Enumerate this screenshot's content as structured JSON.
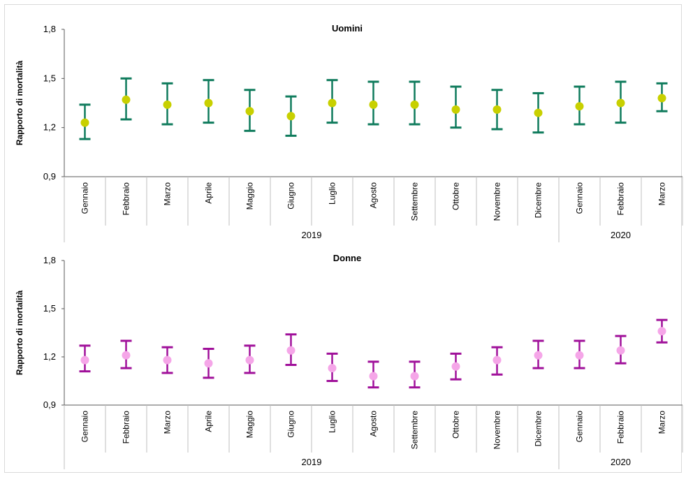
{
  "chart_data": [
    {
      "type": "scatter",
      "title": "Uomini",
      "ylabel": "Rapporto di mortalità",
      "ylim": [
        0.9,
        1.8
      ],
      "yticks": [
        "0,9",
        "1,2",
        "1,5",
        "1,8"
      ],
      "categories": [
        "Gennaio",
        "Febbraio",
        "Marzo",
        "Aprile",
        "Maggio",
        "Giugno",
        "Luglio",
        "Agosto",
        "Settembre",
        "Ottobre",
        "Novembre",
        "Dicembre",
        "Gennaio",
        "Febbraio",
        "Marzo"
      ],
      "groups": [
        {
          "label": "2019",
          "count": 12
        },
        {
          "label": "2020",
          "count": 3
        }
      ],
      "values": [
        1.23,
        1.37,
        1.34,
        1.35,
        1.3,
        1.27,
        1.35,
        1.34,
        1.34,
        1.31,
        1.31,
        1.29,
        1.33,
        1.35,
        1.38
      ],
      "lower": [
        1.13,
        1.25,
        1.22,
        1.23,
        1.18,
        1.15,
        1.23,
        1.22,
        1.22,
        1.2,
        1.19,
        1.17,
        1.22,
        1.23,
        1.3
      ],
      "upper": [
        1.34,
        1.5,
        1.47,
        1.49,
        1.43,
        1.39,
        1.49,
        1.48,
        1.48,
        1.45,
        1.43,
        1.41,
        1.45,
        1.48,
        1.47
      ],
      "bar_color": "#0f7b5c",
      "dot_color": "#c8d000",
      "grid": false,
      "legend": "none"
    },
    {
      "type": "scatter",
      "title": "Donne",
      "ylabel": "Rapporto di mortalità",
      "ylim": [
        0.9,
        1.8
      ],
      "yticks": [
        "0,9",
        "1,2",
        "1,5",
        "1,8"
      ],
      "categories": [
        "Gennaio",
        "Febbraio",
        "Marzo",
        "Aprile",
        "Maggio",
        "Giugno",
        "Luglio",
        "Agosto",
        "Settembre",
        "Ottobre",
        "Novembre",
        "Dicembre",
        "Gennaio",
        "Febbraio",
        "Marzo"
      ],
      "groups": [
        {
          "label": "2019",
          "count": 12
        },
        {
          "label": "2020",
          "count": 3
        }
      ],
      "values": [
        1.18,
        1.21,
        1.18,
        1.16,
        1.18,
        1.24,
        1.13,
        1.08,
        1.08,
        1.14,
        1.18,
        1.21,
        1.21,
        1.24,
        1.36
      ],
      "lower": [
        1.11,
        1.13,
        1.1,
        1.07,
        1.1,
        1.15,
        1.05,
        1.01,
        1.01,
        1.06,
        1.09,
        1.13,
        1.13,
        1.16,
        1.29
      ],
      "upper": [
        1.27,
        1.3,
        1.26,
        1.25,
        1.27,
        1.34,
        1.22,
        1.17,
        1.17,
        1.22,
        1.26,
        1.3,
        1.3,
        1.33,
        1.43
      ],
      "bar_color": "#a0109a",
      "dot_color": "#f5a6e8",
      "grid": false,
      "legend": "none"
    }
  ]
}
